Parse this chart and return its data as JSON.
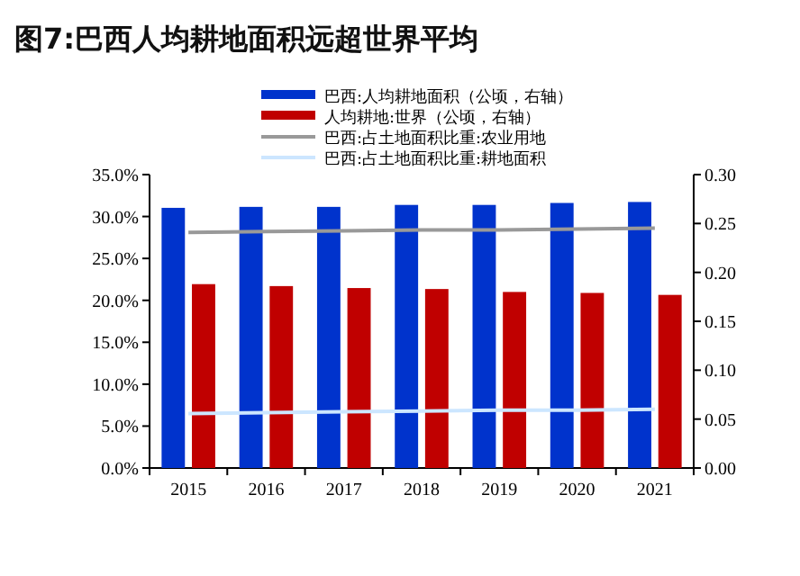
{
  "chart_data": {
    "type": "bar",
    "title": "图7:巴西人均耕地面积远超世界平均",
    "categories": [
      "2015",
      "2016",
      "2017",
      "2018",
      "2019",
      "2020",
      "2021"
    ],
    "series": [
      {
        "name": "巴西:人均耕地面积（公顷，右轴）",
        "color": "#0033cc",
        "axis": "y2",
        "values": [
          0.266,
          0.267,
          0.267,
          0.269,
          0.269,
          0.271,
          0.272
        ]
      },
      {
        "name": "人均耕地:世界（公顷，右轴）",
        "color": "#c00000",
        "axis": "y2",
        "values": [
          0.188,
          0.186,
          0.184,
          0.183,
          0.18,
          0.179,
          0.177
        ]
      },
      {
        "name": "巴西:占土地面积比重:农业用地",
        "color": "#999999",
        "type": "line",
        "values": [
          28.1,
          28.2,
          28.3,
          28.4,
          28.4,
          28.5,
          28.6
        ]
      },
      {
        "name": "巴西:占土地面积比重:耕地面积",
        "color": "#cce6ff",
        "type": "line",
        "values": [
          6.5,
          6.6,
          6.7,
          6.8,
          6.9,
          6.9,
          7.0
        ]
      }
    ],
    "ylim": [
      0,
      35
    ],
    "yticks": [
      {
        "value": 0,
        "label": "0.0%"
      },
      {
        "value": 5,
        "label": "5.0%"
      },
      {
        "value": 10,
        "label": "10.0%"
      },
      {
        "value": 15,
        "label": "15.0%"
      },
      {
        "value": 20,
        "label": "20.0%"
      },
      {
        "value": 25,
        "label": "25.0%"
      },
      {
        "value": 30,
        "label": "30.0%"
      },
      {
        "value": 35,
        "label": "35.0%"
      }
    ],
    "y2lim": [
      0,
      0.3
    ],
    "y2ticks": [
      {
        "value": 0,
        "label": "0.00"
      },
      {
        "value": 0.05,
        "label": "0.05"
      },
      {
        "value": 0.1,
        "label": "0.10"
      },
      {
        "value": 0.15,
        "label": "0.15"
      },
      {
        "value": 0.2,
        "label": "0.20"
      },
      {
        "value": 0.25,
        "label": "0.25"
      },
      {
        "value": 0.3,
        "label": "0.30"
      }
    ],
    "legend": "top",
    "grid": false
  }
}
